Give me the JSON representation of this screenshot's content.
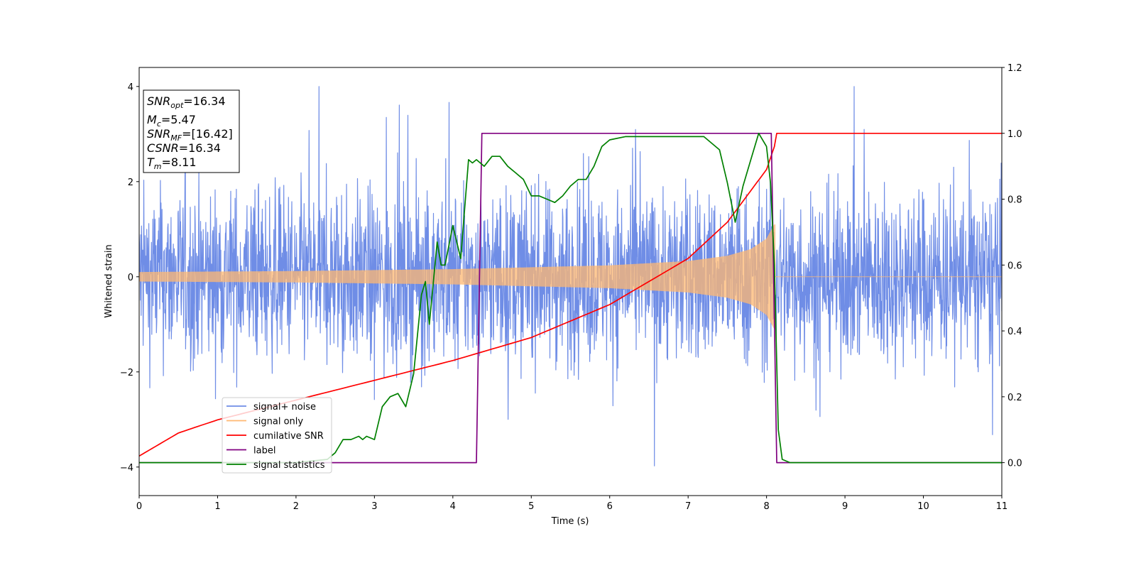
{
  "chart_data": {
    "type": "line",
    "xlabel": "Time (s)",
    "ylabel": "Whitened strain",
    "xlim": [
      0,
      11
    ],
    "ylim_left": [
      -4.6,
      4.4
    ],
    "ylim_right": [
      -0.1,
      1.2
    ],
    "x_ticks": [
      "0",
      "1",
      "2",
      "3",
      "4",
      "5",
      "6",
      "7",
      "8",
      "9",
      "10",
      "11"
    ],
    "y_ticks_left": [
      "−4",
      "−2",
      "0",
      "2",
      "4"
    ],
    "y_ticks_right": [
      "0.0",
      "0.2",
      "0.4",
      "0.6",
      "0.8",
      "1.0",
      "1.2"
    ],
    "info_box": {
      "snr_opt": {
        "sym": "SNR",
        "sub": "opt",
        "value": "=16.34"
      },
      "mc": {
        "sym": "M",
        "sub": "c",
        "value": "=5.47"
      },
      "snr_mf": {
        "sym": "SNR",
        "sub": "MF",
        "value": "=[16.42]"
      },
      "csnr": {
        "sym": "CSNR",
        "sub": "",
        "value": "=16.34"
      },
      "tm": {
        "sym": "T",
        "sub": "m",
        "value": "=8.11"
      }
    },
    "legend_position": "lower-left",
    "series": [
      {
        "name": "signal+ noise",
        "color": "#6f8de6",
        "axis": "left",
        "kind": "noise",
        "baseline_amplitude": 1.5,
        "peak_range": [
          -4.1,
          4.0
        ]
      },
      {
        "name": "signal only",
        "color": "#ffb872",
        "axis": "left",
        "kind": "chirp",
        "envelope": {
          "x": [
            0,
            2,
            4,
            6,
            7,
            7.5,
            7.8,
            8.0,
            8.1
          ],
          "y": [
            0.1,
            0.12,
            0.16,
            0.24,
            0.33,
            0.44,
            0.58,
            0.8,
            1.1
          ]
        },
        "merger_time": 8.11
      },
      {
        "name": "cumilative SNR",
        "color": "#ff0000",
        "axis": "right",
        "x": [
          0,
          0.5,
          1,
          2,
          3,
          4,
          5,
          6,
          7,
          7.5,
          8,
          8.1,
          8.13,
          11
        ],
        "y": [
          0.02,
          0.09,
          0.13,
          0.19,
          0.25,
          0.31,
          0.38,
          0.48,
          0.62,
          0.73,
          0.89,
          0.96,
          1.0,
          1.0
        ]
      },
      {
        "name": "label",
        "color": "#800080",
        "axis": "right",
        "x": [
          0,
          4.3,
          4.37,
          8.06,
          8.13,
          11
        ],
        "y": [
          0.0,
          0.0,
          1.0,
          1.0,
          0.0,
          0.0
        ]
      },
      {
        "name": "signal statistics",
        "color": "#008000",
        "axis": "right",
        "x": [
          0,
          0.5,
          1,
          1.5,
          2,
          2.4,
          2.5,
          2.6,
          2.7,
          2.8,
          2.85,
          2.9,
          3.0,
          3.1,
          3.2,
          3.3,
          3.4,
          3.5,
          3.6,
          3.65,
          3.7,
          3.8,
          3.85,
          3.9,
          4.0,
          4.05,
          4.1,
          4.2,
          4.25,
          4.3,
          4.4,
          4.5,
          4.6,
          4.7,
          4.8,
          4.9,
          5.0,
          5.1,
          5.2,
          5.3,
          5.4,
          5.5,
          5.6,
          5.7,
          5.8,
          5.9,
          6.0,
          6.2,
          6.5,
          6.8,
          7.0,
          7.2,
          7.4,
          7.5,
          7.6,
          7.7,
          7.8,
          7.9,
          8.0,
          8.05,
          8.1,
          8.15,
          8.2,
          8.3,
          11
        ],
        "y": [
          0.0,
          0.0,
          0.0,
          0.0,
          0.0,
          0.01,
          0.03,
          0.07,
          0.07,
          0.08,
          0.07,
          0.08,
          0.07,
          0.17,
          0.2,
          0.21,
          0.17,
          0.27,
          0.51,
          0.55,
          0.42,
          0.67,
          0.6,
          0.6,
          0.72,
          0.67,
          0.62,
          0.92,
          0.91,
          0.92,
          0.9,
          0.93,
          0.93,
          0.9,
          0.88,
          0.86,
          0.81,
          0.81,
          0.8,
          0.79,
          0.81,
          0.84,
          0.86,
          0.86,
          0.9,
          0.96,
          0.98,
          0.99,
          0.99,
          0.99,
          0.99,
          0.99,
          0.95,
          0.85,
          0.73,
          0.84,
          0.92,
          1.0,
          0.96,
          0.85,
          0.6,
          0.1,
          0.01,
          0.0,
          0.0
        ]
      }
    ]
  }
}
